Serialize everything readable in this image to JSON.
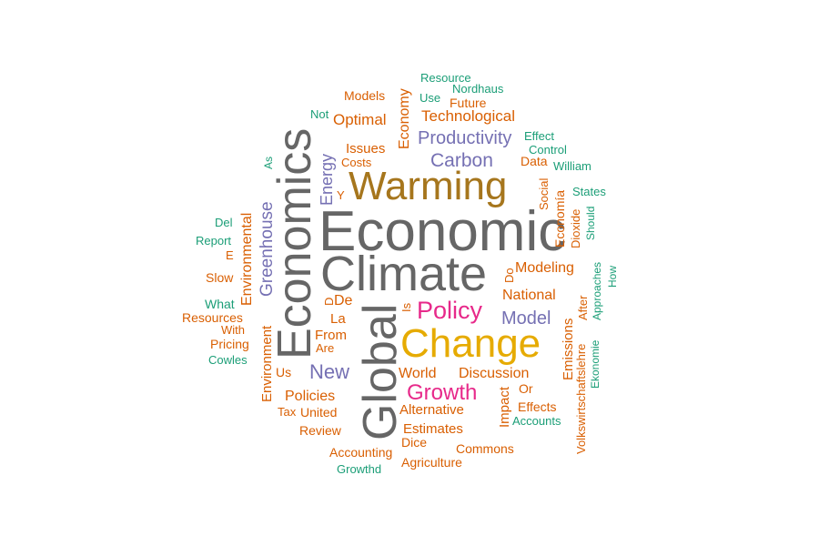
{
  "colors": {
    "gray": "#666666",
    "orange": "#d95f02",
    "gold": "#e6ab02",
    "brown": "#a6761d",
    "purple": "#7570b3",
    "magenta": "#e7298a",
    "teal": "#1b9e77",
    "background": "#ffffff"
  },
  "words": [
    {
      "text": "Economic",
      "color": "gray"
    },
    {
      "text": "Climate",
      "color": "gray"
    },
    {
      "text": "Economics",
      "color": "gray"
    },
    {
      "text": "Global",
      "color": "gray"
    },
    {
      "text": "Warming",
      "color": "brown"
    },
    {
      "text": "Change",
      "color": "gold"
    },
    {
      "text": "Policy",
      "color": "magenta"
    },
    {
      "text": "Growth",
      "color": "magenta"
    },
    {
      "text": "Productivity",
      "color": "purple"
    },
    {
      "text": "Carbon",
      "color": "purple"
    },
    {
      "text": "Model",
      "color": "purple"
    },
    {
      "text": "New",
      "color": "purple"
    },
    {
      "text": "Greenhouse",
      "color": "purple"
    },
    {
      "text": "Energy",
      "color": "purple"
    },
    {
      "text": "Technological",
      "color": "orange"
    },
    {
      "text": "Optimal",
      "color": "orange"
    },
    {
      "text": "Economy",
      "color": "orange"
    },
    {
      "text": "Modeling",
      "color": "orange"
    },
    {
      "text": "National",
      "color": "orange"
    },
    {
      "text": "World",
      "color": "orange"
    },
    {
      "text": "Discussion",
      "color": "orange"
    },
    {
      "text": "Policies",
      "color": "orange"
    },
    {
      "text": "Alternative",
      "color": "orange"
    },
    {
      "text": "Estimates",
      "color": "orange"
    },
    {
      "text": "Environmental",
      "color": "orange"
    },
    {
      "text": "Environment",
      "color": "orange"
    },
    {
      "text": "Emissions",
      "color": "orange"
    },
    {
      "text": "Impact",
      "color": "orange"
    },
    {
      "text": "Economía",
      "color": "orange"
    },
    {
      "text": "Issues",
      "color": "orange"
    },
    {
      "text": "Costs",
      "color": "orange"
    },
    {
      "text": "Data",
      "color": "orange"
    },
    {
      "text": "Future",
      "color": "orange"
    },
    {
      "text": "Models",
      "color": "orange"
    },
    {
      "text": "Social",
      "color": "orange"
    },
    {
      "text": "Dioxide",
      "color": "orange"
    },
    {
      "text": "After",
      "color": "orange"
    },
    {
      "text": "Volkswirtschaftslehre",
      "color": "orange"
    },
    {
      "text": "Effects",
      "color": "orange"
    },
    {
      "text": "Or",
      "color": "orange"
    },
    {
      "text": "From",
      "color": "orange"
    },
    {
      "text": "La",
      "color": "orange"
    },
    {
      "text": "De",
      "color": "orange"
    },
    {
      "text": "D",
      "color": "orange"
    },
    {
      "text": "Are",
      "color": "orange"
    },
    {
      "text": "Is",
      "color": "orange"
    },
    {
      "text": "Us",
      "color": "orange"
    },
    {
      "text": "Tax",
      "color": "orange"
    },
    {
      "text": "United",
      "color": "orange"
    },
    {
      "text": "Review",
      "color": "orange"
    },
    {
      "text": "Dice",
      "color": "orange"
    },
    {
      "text": "Commons",
      "color": "orange"
    },
    {
      "text": "Accounting",
      "color": "orange"
    },
    {
      "text": "Agriculture",
      "color": "orange"
    },
    {
      "text": "Resources",
      "color": "orange"
    },
    {
      "text": "With",
      "color": "orange"
    },
    {
      "text": "Pricing",
      "color": "orange"
    },
    {
      "text": "Slow",
      "color": "orange"
    },
    {
      "text": "E",
      "color": "orange"
    },
    {
      "text": "Y",
      "color": "orange"
    },
    {
      "text": "Do",
      "color": "orange"
    },
    {
      "text": "Resource",
      "color": "teal"
    },
    {
      "text": "Nordhaus",
      "color": "teal"
    },
    {
      "text": "Use",
      "color": "teal"
    },
    {
      "text": "Not",
      "color": "teal"
    },
    {
      "text": "Effect",
      "color": "teal"
    },
    {
      "text": "Control",
      "color": "teal"
    },
    {
      "text": "William",
      "color": "teal"
    },
    {
      "text": "States",
      "color": "teal"
    },
    {
      "text": "Should",
      "color": "teal"
    },
    {
      "text": "Approaches",
      "color": "teal"
    },
    {
      "text": "How",
      "color": "teal"
    },
    {
      "text": "Ekonomie",
      "color": "teal"
    },
    {
      "text": "Accounts",
      "color": "teal"
    },
    {
      "text": "Growthd",
      "color": "teal"
    },
    {
      "text": "Cowles",
      "color": "teal"
    },
    {
      "text": "What",
      "color": "teal"
    },
    {
      "text": "Report",
      "color": "teal"
    },
    {
      "text": "Del",
      "color": "teal"
    },
    {
      "text": "As",
      "color": "teal"
    }
  ]
}
